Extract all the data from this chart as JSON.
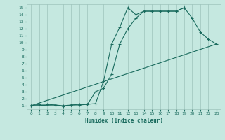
{
  "xlabel": "Humidex (Indice chaleur)",
  "xlim": [
    -0.5,
    23.5
  ],
  "ylim": [
    0.5,
    15.5
  ],
  "xticks": [
    0,
    1,
    2,
    3,
    4,
    5,
    6,
    7,
    8,
    9,
    10,
    11,
    12,
    13,
    14,
    15,
    16,
    17,
    18,
    19,
    20,
    21,
    22,
    23
  ],
  "yticks": [
    1,
    2,
    3,
    4,
    5,
    6,
    7,
    8,
    9,
    10,
    11,
    12,
    13,
    14,
    15
  ],
  "bg_color": "#c5e8e0",
  "grid_color": "#9dc4bc",
  "line_color": "#1a6b5e",
  "line1_x": [
    0,
    1,
    2,
    3,
    4,
    5,
    6,
    7,
    8,
    9,
    10,
    11,
    12,
    13,
    14,
    15,
    16,
    17,
    18,
    19
  ],
  "line1_y": [
    1,
    1.2,
    1.2,
    1.1,
    1.0,
    1.1,
    1.1,
    1.2,
    1.3,
    4.5,
    9.8,
    12.2,
    15.0,
    14.0,
    14.5,
    14.5,
    14.5,
    14.5,
    14.5,
    15.0
  ],
  "line2_x": [
    0,
    3,
    4,
    5,
    6,
    7,
    8,
    9,
    10,
    11,
    12,
    13,
    14,
    15,
    16,
    17,
    18,
    19,
    20,
    21,
    22,
    23
  ],
  "line2_y": [
    1,
    1.1,
    0.9,
    1.1,
    1.2,
    1.2,
    3.0,
    3.5,
    5.5,
    9.8,
    12.0,
    13.5,
    14.5,
    14.5,
    14.5,
    14.5,
    14.5,
    15.0,
    13.5,
    11.5,
    10.5,
    9.8
  ],
  "line3_x": [
    0,
    23
  ],
  "line3_y": [
    1,
    9.8
  ],
  "has_markers": true
}
